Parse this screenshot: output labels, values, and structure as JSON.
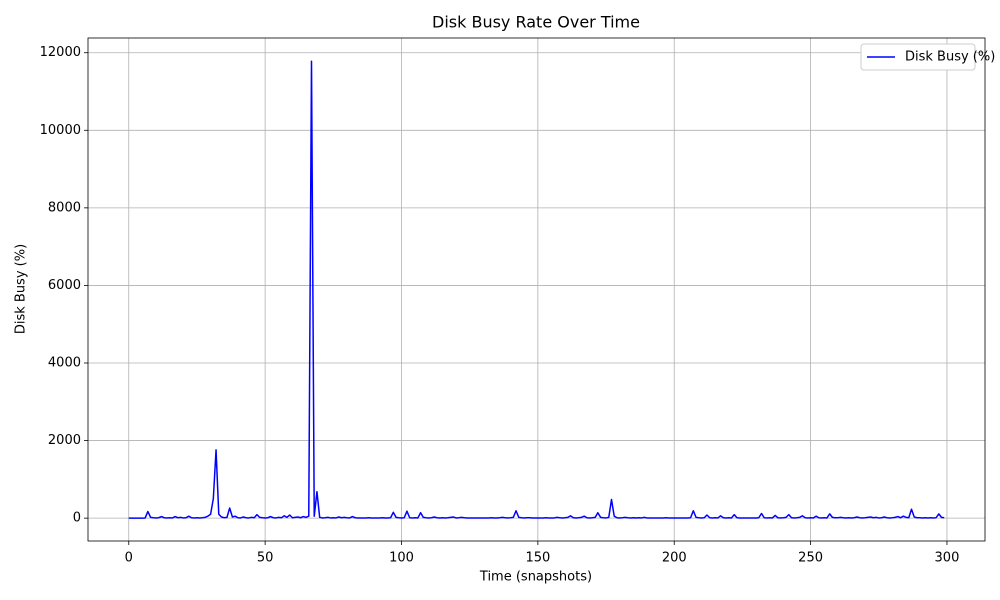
{
  "chart_data": {
    "type": "line",
    "title": "Disk Busy Rate Over Time",
    "xlabel": "Time (snapshots)",
    "ylabel": "Disk Busy (%)",
    "x": [
      0,
      1,
      2,
      3,
      4,
      5,
      6,
      7,
      8,
      9,
      10,
      11,
      12,
      13,
      14,
      15,
      16,
      17,
      18,
      19,
      20,
      21,
      22,
      23,
      24,
      25,
      26,
      27,
      28,
      29,
      30,
      31,
      32,
      33,
      34,
      35,
      36,
      37,
      38,
      39,
      40,
      41,
      42,
      43,
      44,
      45,
      46,
      47,
      48,
      49,
      50,
      51,
      52,
      53,
      54,
      55,
      56,
      57,
      58,
      59,
      60,
      61,
      62,
      63,
      64,
      65,
      66,
      67,
      68,
      69,
      70,
      71,
      72,
      73,
      74,
      75,
      76,
      77,
      78,
      79,
      80,
      81,
      82,
      83,
      84,
      85,
      86,
      87,
      88,
      89,
      90,
      91,
      92,
      93,
      94,
      95,
      96,
      97,
      98,
      99,
      100,
      101,
      102,
      103,
      104,
      105,
      106,
      107,
      108,
      109,
      110,
      111,
      112,
      113,
      114,
      115,
      116,
      117,
      118,
      119,
      120,
      121,
      122,
      123,
      124,
      125,
      126,
      127,
      128,
      129,
      130,
      131,
      132,
      133,
      134,
      135,
      136,
      137,
      138,
      139,
      140,
      141,
      142,
      143,
      144,
      145,
      146,
      147,
      148,
      149,
      150,
      151,
      152,
      153,
      154,
      155,
      156,
      157,
      158,
      159,
      160,
      161,
      162,
      163,
      164,
      165,
      166,
      167,
      168,
      169,
      170,
      171,
      172,
      173,
      174,
      175,
      176,
      177,
      178,
      179,
      180,
      181,
      182,
      183,
      184,
      185,
      186,
      187,
      188,
      189,
      190,
      191,
      192,
      193,
      194,
      195,
      196,
      197,
      198,
      199,
      200,
      201,
      202,
      203,
      204,
      205,
      206,
      207,
      208,
      209,
      210,
      211,
      212,
      213,
      214,
      215,
      216,
      217,
      218,
      219,
      220,
      221,
      222,
      223,
      224,
      225,
      226,
      227,
      228,
      229,
      230,
      231,
      232,
      233,
      234,
      235,
      236,
      237,
      238,
      239,
      240,
      241,
      242,
      243,
      244,
      245,
      246,
      247,
      248,
      249,
      250,
      251,
      252,
      253,
      254,
      255,
      256,
      257,
      258,
      259,
      260,
      261,
      262,
      263,
      264,
      265,
      266,
      267,
      268,
      269,
      270,
      271,
      272,
      273,
      274,
      275,
      276,
      277,
      278,
      279,
      280,
      281,
      282,
      283,
      284,
      285,
      286,
      287,
      288,
      289,
      290,
      291,
      292,
      293,
      294,
      295,
      296,
      297,
      298,
      299
    ],
    "series": [
      {
        "name": "Disk Busy (%)",
        "color": "#0000ff",
        "values": [
          0,
          0,
          0,
          0,
          0,
          0,
          5,
          170,
          20,
          10,
          5,
          10,
          40,
          10,
          5,
          10,
          5,
          40,
          10,
          20,
          5,
          10,
          50,
          10,
          5,
          10,
          5,
          10,
          20,
          50,
          100,
          500,
          1760,
          100,
          30,
          10,
          20,
          260,
          30,
          50,
          10,
          5,
          30,
          10,
          5,
          20,
          10,
          90,
          20,
          10,
          5,
          10,
          40,
          10,
          5,
          20,
          10,
          60,
          20,
          80,
          10,
          20,
          30,
          10,
          40,
          20,
          50,
          11780,
          50,
          680,
          20,
          5,
          10,
          20,
          5,
          10,
          5,
          30,
          10,
          20,
          10,
          5,
          40,
          10,
          5,
          5,
          5,
          5,
          10,
          5,
          5,
          5,
          5,
          10,
          5,
          5,
          10,
          150,
          20,
          10,
          5,
          10,
          180,
          10,
          5,
          10,
          5,
          140,
          20,
          10,
          5,
          10,
          30,
          10,
          5,
          10,
          5,
          10,
          20,
          30,
          5,
          10,
          20,
          10,
          5,
          5,
          5,
          5,
          5,
          5,
          5,
          5,
          5,
          10,
          5,
          5,
          10,
          20,
          10,
          5,
          10,
          20,
          190,
          20,
          10,
          5,
          10,
          10,
          5,
          5,
          5,
          5,
          5,
          10,
          5,
          5,
          5,
          20,
          10,
          5,
          10,
          20,
          60,
          10,
          5,
          10,
          20,
          50,
          10,
          5,
          10,
          20,
          140,
          20,
          10,
          5,
          20,
          480,
          50,
          10,
          5,
          10,
          20,
          10,
          5,
          10,
          5,
          10,
          5,
          20,
          5,
          5,
          5,
          5,
          5,
          5,
          5,
          10,
          5,
          5,
          5,
          5,
          5,
          5,
          5,
          5,
          10,
          190,
          20,
          10,
          5,
          10,
          80,
          10,
          5,
          10,
          5,
          60,
          10,
          5,
          10,
          5,
          90,
          10,
          5,
          5,
          5,
          5,
          5,
          5,
          5,
          10,
          120,
          10,
          5,
          10,
          5,
          70,
          10,
          5,
          10,
          20,
          90,
          10,
          5,
          10,
          20,
          60,
          10,
          5,
          10,
          5,
          50,
          10,
          5,
          10,
          5,
          110,
          20,
          10,
          10,
          20,
          10,
          5,
          10,
          5,
          10,
          30,
          10,
          5,
          10,
          20,
          30,
          10,
          20,
          5,
          10,
          30,
          10,
          5,
          10,
          20,
          40,
          10,
          50,
          20,
          10,
          230,
          30,
          10,
          10,
          5,
          10,
          5,
          10,
          5,
          10,
          110,
          20,
          10
        ]
      }
    ],
    "xlim": [
      -14.95,
      313.95
    ],
    "xticks": [
      0,
      50,
      100,
      150,
      200,
      250,
      300
    ],
    "ylim": [
      -589.5,
      12379.5
    ],
    "yticks": [
      0,
      2000,
      4000,
      6000,
      8000,
      10000,
      12000
    ],
    "grid": true,
    "legend": "upper right"
  }
}
